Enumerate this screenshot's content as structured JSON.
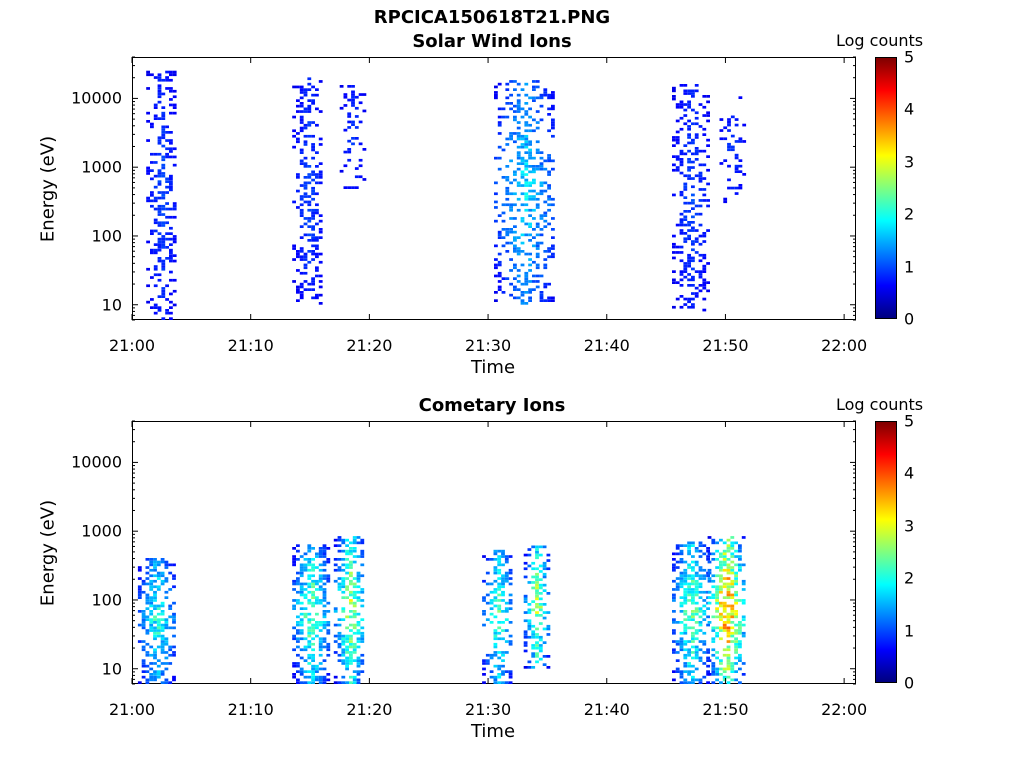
{
  "page_title": "RPCICA150618T21.PNG",
  "chart_data": [
    {
      "type": "heatmap",
      "title": "Solar Wind Ions",
      "xlabel": "Time",
      "ylabel": "Energy (eV)",
      "x_ticks": [
        "21:00",
        "21:10",
        "21:20",
        "21:30",
        "21:40",
        "21:50",
        "22:00"
      ],
      "x_range_minutes": [
        0,
        61
      ],
      "y_ticks": [
        "10",
        "100",
        "1000",
        "10000"
      ],
      "y_scale": "log",
      "y_range": [
        6,
        40000
      ],
      "colorbar": {
        "label": "Log counts",
        "ticks": [
          "0",
          "1",
          "2",
          "3",
          "4",
          "5"
        ],
        "range": [
          0,
          5
        ],
        "colormap": "jet"
      },
      "clusters": [
        {
          "t_min": 1.2,
          "t_max": 3.6,
          "e_min": 6,
          "e_max": 25000,
          "peak_log_counts": 0.6,
          "density": 0.45
        },
        {
          "t_min": 13.5,
          "t_max": 16.0,
          "e_min": 10,
          "e_max": 20000,
          "peak_log_counts": 0.6,
          "density": 0.4
        },
        {
          "t_min": 17.5,
          "t_max": 19.5,
          "e_min": 400,
          "e_max": 15000,
          "peak_log_counts": 0.5,
          "density": 0.25
        },
        {
          "t_min": 30.5,
          "t_max": 35.5,
          "e_min": 10,
          "e_max": 18000,
          "peak_log_counts": 1.6,
          "density": 0.4
        },
        {
          "t_min": 45.5,
          "t_max": 48.5,
          "e_min": 8,
          "e_max": 15000,
          "peak_log_counts": 0.6,
          "density": 0.4
        },
        {
          "t_min": 49.5,
          "t_max": 51.5,
          "e_min": 300,
          "e_max": 10000,
          "peak_log_counts": 0.5,
          "density": 0.2
        }
      ]
    },
    {
      "type": "heatmap",
      "title": "Cometary Ions",
      "xlabel": "Time",
      "ylabel": "Energy (eV)",
      "x_ticks": [
        "21:00",
        "21:10",
        "21:20",
        "21:30",
        "21:40",
        "21:50",
        "22:00"
      ],
      "x_range_minutes": [
        0,
        61
      ],
      "y_ticks": [
        "10",
        "100",
        "1000",
        "10000"
      ],
      "y_scale": "log",
      "y_range": [
        6,
        40000
      ],
      "colorbar": {
        "label": "Log counts",
        "ticks": [
          "0",
          "1",
          "2",
          "3",
          "4",
          "5"
        ],
        "range": [
          0,
          5
        ],
        "colormap": "jet"
      },
      "clusters": [
        {
          "t_min": 0.5,
          "t_max": 3.5,
          "e_min": 6,
          "e_max": 400,
          "peak_log_counts": 2.0,
          "density": 0.6
        },
        {
          "t_min": 13.5,
          "t_max": 16.5,
          "e_min": 6,
          "e_max": 600,
          "peak_log_counts": 2.5,
          "density": 0.6
        },
        {
          "t_min": 17.0,
          "t_max": 19.5,
          "e_min": 6,
          "e_max": 800,
          "peak_log_counts": 3.0,
          "density": 0.6
        },
        {
          "t_min": 29.5,
          "t_max": 32.0,
          "e_min": 6,
          "e_max": 500,
          "peak_log_counts": 2.2,
          "density": 0.55
        },
        {
          "t_min": 33.0,
          "t_max": 35.0,
          "e_min": 10,
          "e_max": 600,
          "peak_log_counts": 2.8,
          "density": 0.55
        },
        {
          "t_min": 45.5,
          "t_max": 48.5,
          "e_min": 6,
          "e_max": 700,
          "peak_log_counts": 2.5,
          "density": 0.6
        },
        {
          "t_min": 48.5,
          "t_max": 51.5,
          "e_min": 6,
          "e_max": 800,
          "peak_log_counts": 4.2,
          "density": 0.65
        }
      ]
    }
  ]
}
